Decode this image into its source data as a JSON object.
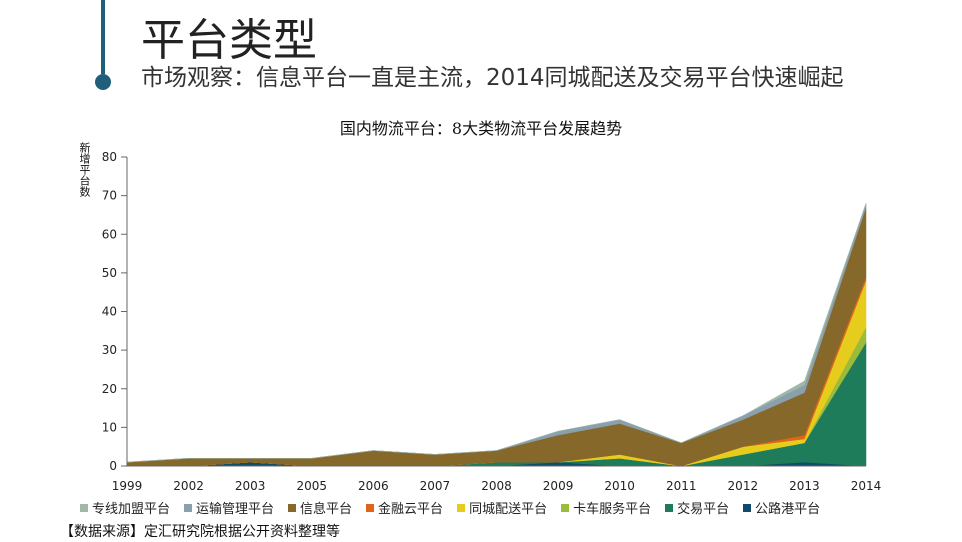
{
  "header": {
    "title": "平台类型",
    "subtitle": "市场观察：信息平台一直是主流，2014同城配送及交易平台快速崛起"
  },
  "footer": {
    "source": "【数据来源】定汇研究院根据公开资料整理等"
  },
  "chart_data": {
    "type": "area",
    "stacked": true,
    "title": "国内物流平台：8大类物流平台发展趋势",
    "ylabel": "新增平台数",
    "xlabel": "",
    "ylim": [
      0,
      80
    ],
    "yticks": [
      0,
      10,
      20,
      30,
      40,
      50,
      60,
      70,
      80
    ],
    "categories": [
      "1999",
      "2002",
      "2003",
      "2005",
      "2006",
      "2007",
      "2008",
      "2009",
      "2010",
      "2011",
      "2012",
      "2013",
      "2014"
    ],
    "legend_position": "bottom",
    "series": [
      {
        "name": "公路港平台",
        "color": "#0f4c6b",
        "values": [
          0,
          0,
          1,
          0,
          0,
          0,
          0,
          1,
          0,
          0,
          0,
          1,
          0
        ]
      },
      {
        "name": "交易平台",
        "color": "#1e7c5a",
        "values": [
          0,
          0,
          0,
          0,
          0,
          0,
          1,
          0,
          2,
          0,
          3,
          5,
          32
        ]
      },
      {
        "name": "卡车服务平台",
        "color": "#9bbb3a",
        "values": [
          0,
          0,
          0,
          0,
          0,
          0,
          0,
          0,
          0,
          0,
          0,
          0,
          4
        ]
      },
      {
        "name": "同城配送平台",
        "color": "#e6cc1c",
        "values": [
          0,
          0,
          0,
          0,
          0,
          0,
          0,
          0,
          1,
          0,
          2,
          1,
          12
        ]
      },
      {
        "name": "金融云平台",
        "color": "#e0651a",
        "values": [
          0,
          0,
          0,
          0,
          0,
          0,
          0,
          0,
          0,
          0,
          0,
          1,
          1
        ]
      },
      {
        "name": "信息平台",
        "color": "#86692a",
        "values": [
          1,
          2,
          1,
          2,
          4,
          3,
          3,
          7,
          8,
          6,
          7,
          11,
          18
        ]
      },
      {
        "name": "运输管理平台",
        "color": "#8aa0ae",
        "values": [
          0,
          0,
          0,
          0,
          0,
          0,
          0,
          1,
          1,
          0,
          1,
          2,
          1
        ]
      },
      {
        "name": "专线加盟平台",
        "color": "#9fb8a8",
        "values": [
          0,
          0,
          0,
          0,
          0,
          0,
          0,
          0,
          0,
          0,
          0,
          1,
          0
        ]
      }
    ]
  }
}
